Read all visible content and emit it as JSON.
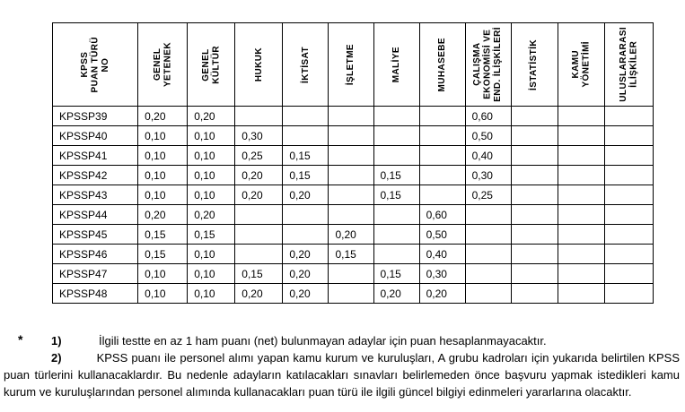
{
  "table": {
    "columns": [
      {
        "key": "kpss-puan-turu-no",
        "label": "KPSS\nPUAN TÜRÜ\nNO"
      },
      {
        "key": "genel-yetenek",
        "label": "GENEL\nYETENEK"
      },
      {
        "key": "genel-kultur",
        "label": "GENEL\nKÜLTÜR"
      },
      {
        "key": "hukuk",
        "label": "HUKUK"
      },
      {
        "key": "iktisat",
        "label": "İKTİSAT"
      },
      {
        "key": "isletme",
        "label": "İŞLETME"
      },
      {
        "key": "maliye",
        "label": "MALİYE"
      },
      {
        "key": "muhasebe",
        "label": "MUHASEBE"
      },
      {
        "key": "calisma-ekonomisi",
        "label": "ÇALIŞMA\nEKONOMİSİ VE\nEND. İLİŞKİLERİ"
      },
      {
        "key": "istatistik",
        "label": "İSTATİSTİK"
      },
      {
        "key": "kamu-yonetimi",
        "label": "KAMU\nYÖNETİMİ"
      },
      {
        "key": "uluslararasi-iliskiler",
        "label": "ULUSLARARASI\nİLİŞKİLER"
      }
    ],
    "rows": [
      {
        "no": "KPSSP39",
        "values": [
          "0,20",
          "0,20",
          "",
          "",
          "",
          "",
          "",
          "0,60",
          "",
          "",
          ""
        ]
      },
      {
        "no": "KPSSP40",
        "values": [
          "0,10",
          "0,10",
          "0,30",
          "",
          "",
          "",
          "",
          "0,50",
          "",
          "",
          ""
        ]
      },
      {
        "no": "KPSSP41",
        "values": [
          "0,10",
          "0,10",
          "0,25",
          "0,15",
          "",
          "",
          "",
          "0,40",
          "",
          "",
          ""
        ]
      },
      {
        "no": "KPSSP42",
        "values": [
          "0,10",
          "0,10",
          "0,20",
          "0,15",
          "",
          "0,15",
          "",
          "0,30",
          "",
          "",
          ""
        ]
      },
      {
        "no": "KPSSP43",
        "values": [
          "0,10",
          "0,10",
          "0,20",
          "0,20",
          "",
          "0,15",
          "",
          "0,25",
          "",
          "",
          ""
        ]
      },
      {
        "no": "KPSSP44",
        "values": [
          "0,20",
          "0,20",
          "",
          "",
          "",
          "",
          "0,60",
          "",
          "",
          "",
          ""
        ]
      },
      {
        "no": "KPSSP45",
        "values": [
          "0,15",
          "0,15",
          "",
          "",
          "0,20",
          "",
          "0,50",
          "",
          "",
          "",
          ""
        ]
      },
      {
        "no": "KPSSP46",
        "values": [
          "0,15",
          "0,10",
          "",
          "0,20",
          "0,15",
          "",
          "0,40",
          "",
          "",
          "",
          ""
        ]
      },
      {
        "no": "KPSSP47",
        "values": [
          "0,10",
          "0,10",
          "0,15",
          "0,20",
          "",
          "0,15",
          "0,30",
          "",
          "",
          "",
          ""
        ]
      },
      {
        "no": "KPSSP48",
        "values": [
          "0,10",
          "0,10",
          "0,20",
          "0,20",
          "",
          "0,20",
          "0,20",
          "",
          "",
          "",
          ""
        ]
      }
    ]
  },
  "footnotes": {
    "star": "*",
    "items": [
      {
        "num": "1)",
        "text": "İlgili testte en az 1 ham puanı (net) bulunmayan adaylar için puan hesaplanmayacaktır."
      },
      {
        "num": "2)",
        "text": "KPSS puanı ile personel alımı yapan kamu kurum ve kuruluşları, A grubu kadroları için yukarıda belirtilen KPSS puan türlerini kullanacaklardır.  Bu nedenle adayların katılacakları sınavları belirlemeden önce başvuru yapmak istedikleri kamu kurum ve kuruluşlarından personel alımında kullanacakları puan türü ile ilgili güncel bilgiyi edinmeleri yararlarına olacaktır."
      }
    ]
  }
}
